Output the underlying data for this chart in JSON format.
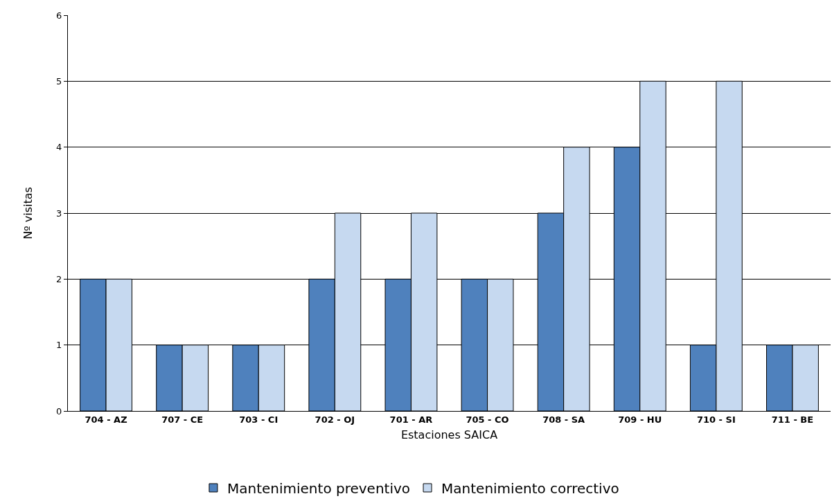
{
  "chart_data": {
    "type": "bar",
    "xlabel": "Estaciones SAICA",
    "ylabel": "Nº visitas",
    "categories": [
      "704 - AZ",
      "707 - CE",
      "703 - CI",
      "702 - OJ",
      "701 - AR",
      "705 - CO",
      "708 - SA",
      "709 - HU",
      "710 - SI",
      "711 - BE"
    ],
    "series": [
      {
        "name": "Mantenimiento preventivo",
        "color": "#4f81bd",
        "values": [
          2,
          1,
          1,
          2,
          2,
          2,
          3,
          4,
          1,
          1
        ]
      },
      {
        "name": "Mantenimiento correctivo",
        "color": "#c6d9f0",
        "values": [
          2,
          1,
          1,
          3,
          3,
          2,
          4,
          5,
          5,
          1
        ]
      }
    ],
    "ylim": [
      0,
      6
    ],
    "yticks": [
      0,
      1,
      2,
      3,
      4,
      5,
      6
    ],
    "grid": "y",
    "legend": "bottom"
  }
}
